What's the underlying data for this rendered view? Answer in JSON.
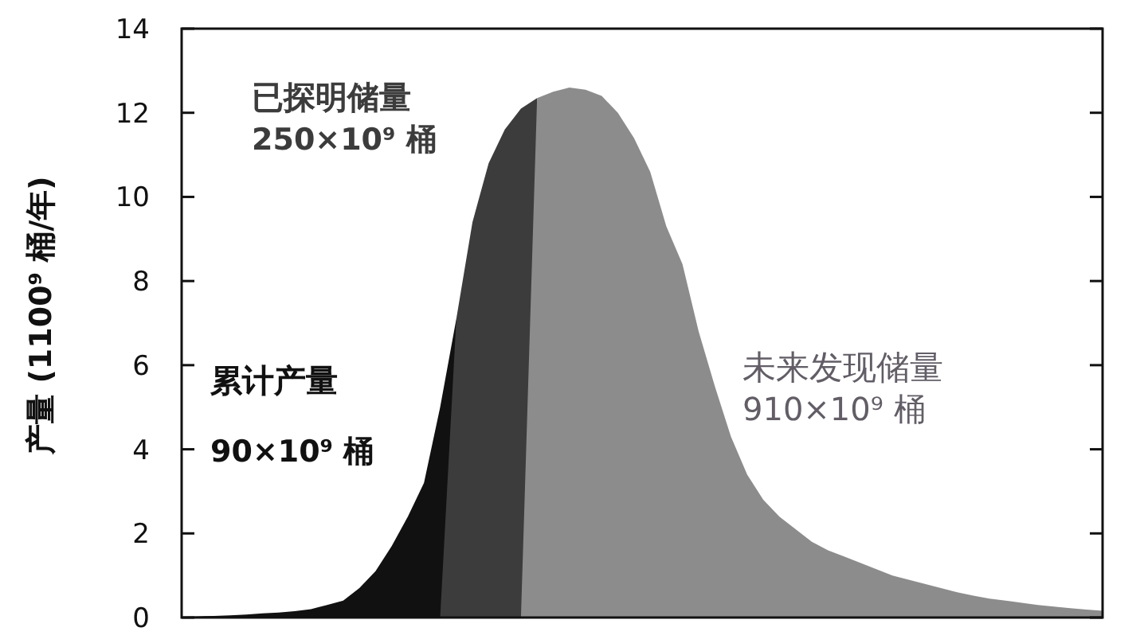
{
  "chart_data": {
    "type": "area",
    "ylabel": "产量 (1100⁹ 桶/年)",
    "ylim": [
      0,
      14
    ],
    "yticks": [
      0,
      2,
      4,
      6,
      8,
      10,
      12,
      14
    ],
    "grid": false,
    "legend": false,
    "categories": [
      null,
      null,
      null,
      null,
      null,
      null,
      null,
      null,
      null,
      null,
      null,
      null,
      null,
      null,
      null,
      null,
      null,
      null,
      null,
      null,
      null,
      null,
      null,
      null,
      null,
      null,
      null,
      null,
      null,
      null,
      null,
      null,
      null,
      null,
      null,
      null,
      null,
      null,
      null,
      null,
      null,
      null,
      null,
      null,
      null,
      null,
      null,
      null,
      null,
      null,
      null,
      null,
      null,
      null,
      null,
      null,
      null,
      null
    ],
    "series": [
      {
        "name": "累计产量\n90×10⁹ 桶",
        "color": "#111111",
        "values": [
          0.02,
          0.03,
          0.04,
          0.05,
          0.07,
          0.1,
          0.12,
          0.15,
          0.2,
          0.3,
          0.4,
          0.7,
          1.1,
          1.7,
          2.4,
          3.2,
          5.0,
          7.1,
          0,
          0,
          0,
          0,
          0,
          0,
          0,
          0,
          0,
          0,
          0,
          0,
          0,
          0,
          0,
          0,
          0,
          0,
          0,
          0,
          0,
          0,
          0,
          0,
          0,
          0,
          0,
          0,
          0,
          0,
          0,
          0,
          0,
          0,
          0,
          0,
          0,
          0,
          0,
          0
        ]
      },
      {
        "name": "已探明储量\n250×10⁹ 桶",
        "color": "#3c3c3c",
        "values": [
          0,
          0,
          0,
          0,
          0,
          0,
          0,
          0,
          0,
          0,
          0,
          0,
          0,
          0,
          0,
          0,
          0,
          7.1,
          9.4,
          10.8,
          11.6,
          12.1,
          12.35,
          0,
          0,
          0,
          0,
          0,
          0,
          0,
          0,
          0,
          0,
          0,
          0,
          0,
          0,
          0,
          0,
          0,
          0,
          0,
          0,
          0,
          0,
          0,
          0,
          0,
          0,
          0,
          0,
          0,
          0,
          0,
          0,
          0,
          0,
          0
        ]
      },
      {
        "name": "未来发现储量\n910×10⁹ 桶",
        "color": "#8c8c8c",
        "values": [
          0,
          0,
          0,
          0,
          0,
          0,
          0,
          0,
          0,
          0,
          0,
          0,
          0,
          0,
          0,
          0,
          0,
          0,
          0,
          0,
          0,
          0,
          12.35,
          12.5,
          12.6,
          12.55,
          12.4,
          12.0,
          11.4,
          10.6,
          9.3,
          8.4,
          6.8,
          5.5,
          4.3,
          3.4,
          2.8,
          2.4,
          2.1,
          1.8,
          1.6,
          1.45,
          1.3,
          1.15,
          1.0,
          0.9,
          0.8,
          0.7,
          0.6,
          0.52,
          0.45,
          0.4,
          0.35,
          0.3,
          0.26,
          0.22,
          0.19,
          0.16
        ]
      }
    ]
  }
}
